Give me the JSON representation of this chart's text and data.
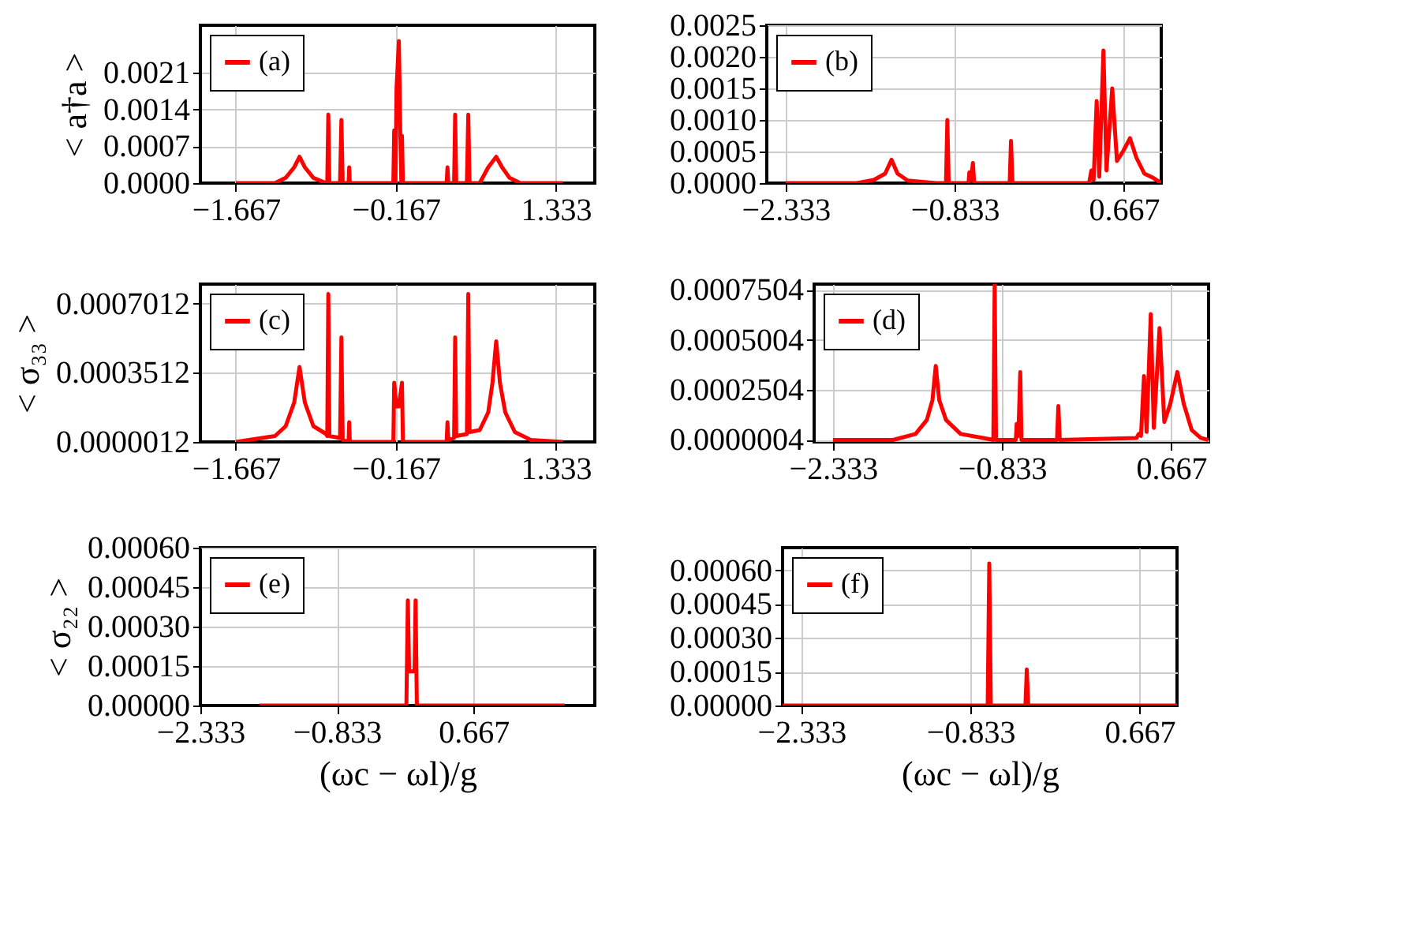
{
  "chart_data": [
    {
      "type": "line",
      "ylabel": "< a†a >",
      "xlim": [
        -2.0,
        1.7
      ],
      "ylim": [
        0,
        0.003
      ],
      "xticks": [
        {
          "value": -1.667,
          "label": "−1.667"
        },
        {
          "value": -0.167,
          "label": "−0.167"
        },
        {
          "value": 1.333,
          "label": "1.333"
        }
      ],
      "yticks": [
        {
          "value": 0,
          "label": "0.0000"
        },
        {
          "value": 0.0007,
          "label": "0.0007"
        },
        {
          "value": 0.0014,
          "label": "0.0014"
        },
        {
          "value": 0.0021,
          "label": "0.0021"
        }
      ],
      "grid": true,
      "legend": "top left",
      "line_style": "solid",
      "x": [
        -1.667,
        -1.3,
        -1.2,
        -1.12,
        -1.07,
        -1.02,
        -0.94,
        -0.82,
        -0.81,
        -0.8,
        -0.79,
        -0.69,
        -0.677,
        -0.665,
        -0.61,
        -0.604,
        -0.598,
        -0.19,
        -0.182,
        -0.17,
        -0.16,
        -0.138,
        -0.125,
        -0.115,
        -0.109,
        -0.1,
        0.31,
        0.318,
        0.325,
        0.38,
        0.39,
        0.4,
        0.5,
        0.513,
        0.525,
        0.62,
        0.7,
        0.775,
        0.83,
        0.9,
        1.0,
        1.4
      ],
      "series": [
        {
          "name": "(a)",
          "color": "#ff0000",
          "values": [
            0,
            0,
            0.0001,
            0.0003,
            0.0005,
            0.0003,
            0.0001,
            0,
            0,
            0.0013,
            0,
            0,
            0.0012,
            0,
            0,
            0.0003,
            0,
            0,
            0.001,
            0,
            0.0018,
            0.0027,
            0.001,
            0,
            0.0009,
            0,
            0,
            0.0003,
            0,
            0,
            0.0013,
            0,
            0,
            0.0013,
            0,
            0,
            0.0003,
            0.0005,
            0.0003,
            0.0001,
            0,
            0
          ]
        }
      ]
    },
    {
      "type": "line",
      "xlim": [
        -2.5,
        1.0
      ],
      "ylim": [
        0,
        0.0025
      ],
      "xticks": [
        {
          "value": -2.333,
          "label": "−2.333"
        },
        {
          "value": -0.833,
          "label": "−0.833"
        },
        {
          "value": 0.667,
          "label": "0.667"
        }
      ],
      "yticks": [
        {
          "value": 0,
          "label": "0.0000"
        },
        {
          "value": 0.0005,
          "label": "0.0005"
        },
        {
          "value": 0.001,
          "label": "0.0010"
        },
        {
          "value": 0.0015,
          "label": "0.0015"
        },
        {
          "value": 0.002,
          "label": "0.0020"
        },
        {
          "value": 0.0025,
          "label": "0.0025"
        }
      ],
      "grid": true,
      "legend": "top left",
      "line_style": "solid",
      "x": [
        -2.333,
        -1.7,
        -1.55,
        -1.45,
        -1.393,
        -1.34,
        -1.25,
        -1.0,
        -0.91,
        -0.898,
        -0.886,
        -0.71,
        -0.703,
        -0.688,
        -0.671,
        -0.66,
        -0.345,
        -0.333,
        -0.32,
        0.36,
        0.38,
        0.4,
        0.427,
        0.45,
        0.487,
        0.514,
        0.565,
        0.607,
        0.66,
        0.723,
        0.78,
        0.85,
        0.93,
        1.0
      ],
      "series": [
        {
          "name": "(b)",
          "color": "#ff0000",
          "values": [
            0,
            0,
            5e-05,
            0.00015,
            0.00037,
            0.00015,
            4e-05,
            0,
            0,
            0.001,
            0,
            0,
            0.00017,
            5e-05,
            0.00032,
            0,
            0,
            0.00067,
            0,
            0,
            0.0002,
            5e-05,
            0.0013,
            0.0001,
            0.0021,
            0.0002,
            0.0015,
            0.00035,
            0.0005,
            0.00071,
            0.0004,
            0.00015,
            8e-05,
            0
          ]
        }
      ]
    },
    {
      "type": "line",
      "ylabel": "< σ₃₃ >",
      "xlim": [
        -2.0,
        1.7
      ],
      "ylim": [
        0,
        0.0008
      ],
      "xticks": [
        {
          "value": -1.667,
          "label": "−1.667"
        },
        {
          "value": -0.167,
          "label": "−0.167"
        },
        {
          "value": 1.333,
          "label": "1.333"
        }
      ],
      "yticks": [
        {
          "value": 1.2e-06,
          "label": "0.0000012"
        },
        {
          "value": 0.0003512,
          "label": "0.0003512"
        },
        {
          "value": 0.0007012,
          "label": "0.0007012"
        }
      ],
      "grid": true,
      "legend": "top left",
      "line_style": "solid",
      "x": [
        -1.667,
        -1.3,
        -1.2,
        -1.12,
        -1.07,
        -1.02,
        -0.94,
        -0.82,
        -0.81,
        -0.8,
        -0.79,
        -0.69,
        -0.677,
        -0.665,
        -0.61,
        -0.604,
        -0.598,
        -0.19,
        -0.182,
        -0.16,
        -0.138,
        -0.109,
        -0.1,
        0.31,
        0.318,
        0.325,
        0.38,
        0.39,
        0.4,
        0.5,
        0.513,
        0.525,
        0.62,
        0.7,
        0.74,
        0.775,
        0.81,
        0.86,
        0.95,
        1.1,
        1.4
      ],
      "series": [
        {
          "name": "(c)",
          "color": "#ff0000",
          "values": [
            0,
            3e-05,
            8e-05,
            0.0002,
            0.00038,
            0.0002,
            8e-05,
            4e-05,
            3e-05,
            0.00075,
            3e-05,
            2e-05,
            0.00053,
            1e-05,
            0,
            0.0001,
            0,
            0,
            0.0003,
            0.00018,
            0.00018,
            0.0003,
            0,
            0,
            0.0001,
            1e-05,
            2e-05,
            0.00053,
            3e-05,
            4e-05,
            0.00075,
            5e-05,
            6e-05,
            0.00015,
            0.0003,
            0.00051,
            0.0003,
            0.00015,
            5e-05,
            1e-05,
            0
          ]
        }
      ]
    },
    {
      "type": "line",
      "xlim": [
        -2.5,
        1.0
      ],
      "ylim": [
        -1e-05,
        0.00078
      ],
      "xticks": [
        {
          "value": -2.333,
          "label": "−2.333"
        },
        {
          "value": -0.833,
          "label": "−0.833"
        },
        {
          "value": 0.667,
          "label": "0.667"
        }
      ],
      "yticks": [
        {
          "value": 4e-07,
          "label": "0.0000004"
        },
        {
          "value": 0.0002504,
          "label": "0.0002504"
        },
        {
          "value": 0.0005004,
          "label": "0.0005004"
        },
        {
          "value": 0.0007504,
          "label": "0.0007504"
        }
      ],
      "grid": true,
      "legend": "top left",
      "line_style": "solid",
      "x": [
        -2.333,
        -1.8,
        -1.6,
        -1.5,
        -1.45,
        -1.421,
        -1.39,
        -1.33,
        -1.2,
        -1.0,
        -0.91,
        -0.898,
        -0.886,
        -0.71,
        -0.703,
        -0.688,
        -0.671,
        -0.66,
        -0.345,
        -0.333,
        -0.32,
        0.36,
        0.38,
        0.4,
        0.427,
        0.45,
        0.487,
        0.514,
        0.565,
        0.607,
        0.66,
        0.723,
        0.78,
        0.85,
        0.93,
        1.0
      ],
      "series": [
        {
          "name": "(d)",
          "color": "#ff0000",
          "values": [
            0,
            0,
            3e-05,
            0.0001,
            0.0002,
            0.00037,
            0.0002,
            0.0001,
            3e-05,
            1e-05,
            0,
            0.00078,
            0,
            0,
            8e-05,
            2e-05,
            0.00034,
            0,
            0,
            0.00017,
            0,
            1e-05,
            3e-05,
            2e-05,
            0.00032,
            4e-05,
            0.00063,
            6e-05,
            0.00056,
            9e-05,
            0.00018,
            0.00034,
            0.00018,
            5e-05,
            1e-05,
            0
          ]
        }
      ]
    },
    {
      "type": "line",
      "ylabel": "< σ₂₂ >",
      "xlabel": "(ωc − ωl)/g",
      "xlim": [
        -2.333,
        2.0
      ],
      "ylim": [
        0,
        0.0006
      ],
      "xticks": [
        {
          "value": -2.333,
          "label": "−2.333"
        },
        {
          "value": -0.833,
          "label": "−0.833"
        },
        {
          "value": 0.667,
          "label": "0.667"
        }
      ],
      "yticks": [
        {
          "value": 0,
          "label": "0.00000"
        },
        {
          "value": 0.00015,
          "label": "0.00015"
        },
        {
          "value": 0.0003,
          "label": "0.00030"
        },
        {
          "value": 0.00045,
          "label": "0.00045"
        },
        {
          "value": 0.0006,
          "label": "0.00060"
        }
      ],
      "grid": true,
      "legend": "top left",
      "line_style": "solid",
      "x": [
        -1.685,
        -0.07,
        -0.054,
        -0.04,
        0.02,
        0.031,
        0.045,
        1.67
      ],
      "series": [
        {
          "name": "(e)",
          "color": "#ff0000",
          "values": [
            0,
            0,
            0.0004,
            0.00013,
            0.00013,
            0.0004,
            0,
            0
          ]
        }
      ]
    },
    {
      "type": "line",
      "xlabel": "(ωc − ωl)/g",
      "xlim": [
        -2.5,
        1.0
      ],
      "ylim": [
        0,
        0.0007
      ],
      "xticks": [
        {
          "value": -2.333,
          "label": "−2.333"
        },
        {
          "value": -0.833,
          "label": "−0.833"
        },
        {
          "value": 0.667,
          "label": "0.667"
        }
      ],
      "yticks": [
        {
          "value": 0,
          "label": "0.00000"
        },
        {
          "value": 0.00015,
          "label": "0.00015"
        },
        {
          "value": 0.0003,
          "label": "0.00030"
        },
        {
          "value": 0.00045,
          "label": "0.00045"
        },
        {
          "value": 0.0006,
          "label": "0.00060"
        }
      ],
      "grid": true,
      "legend": "top left",
      "line_style": "solid",
      "x": [
        -2.5,
        -0.68,
        -0.666,
        -0.652,
        -0.345,
        -0.333,
        -0.32,
        1.0
      ],
      "series": [
        {
          "name": "(f)",
          "color": "#ff0000",
          "values": [
            0,
            0,
            0.00063,
            0,
            0,
            0.00016,
            0,
            0
          ]
        }
      ]
    }
  ]
}
